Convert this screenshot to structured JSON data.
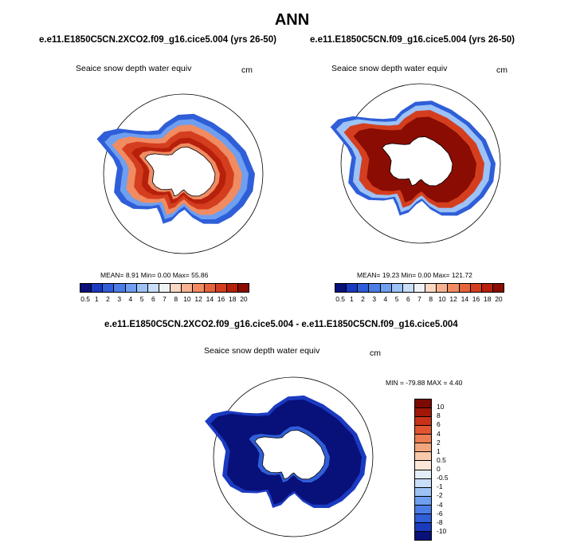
{
  "page": {
    "title": "ANN"
  },
  "panels": [
    {
      "case": "e.e11.E1850C5CN.2XCO2.f09_g16.cice5.004 (yrs 26-50)",
      "variable": "Seaice snow depth water equiv",
      "units": "cm",
      "stats": "MEAN=   8.91  Min=   0.00  Max=  55.86"
    },
    {
      "case": "e.e11.E1850C5CN.f09_g16.cice5.004 (yrs 26-50)",
      "variable": "Seaice snow depth water equiv",
      "units": "cm",
      "stats": "MEAN=  19.23  Min=   0.00  Max= 121.72"
    },
    {
      "case": "e.e11.E1850C5CN.2XCO2.f09_g16.cice5.004 - e.e11.E1850C5CN.f09_g16.cice5.004",
      "variable": "Seaice snow depth water equiv",
      "units": "cm",
      "stats": "MIN = -79.88  MAX =   4.40"
    }
  ],
  "colors": {
    "abs_scale": [
      "#08107a",
      "#1a3ac0",
      "#2f5ed8",
      "#4a7de6",
      "#6e9ff0",
      "#9cc2f6",
      "#c8def9",
      "#f0f2f6",
      "#fbd8c2",
      "#f7b290",
      "#f08b62",
      "#e5643c",
      "#d43e1e",
      "#b7200b",
      "#8a0c02"
    ],
    "diff_scale": [
      "#08107a",
      "#1a3ac0",
      "#2f5ed8",
      "#4a7de6",
      "#6e9ff0",
      "#9cc2f6",
      "#c8def9",
      "#e4eefa",
      "#fbe6d8",
      "#f8c9ab",
      "#f3a57e",
      "#ec7c52",
      "#e05530",
      "#c8321a",
      "#a01708",
      "#7a0a02"
    ],
    "land": "#ffffff",
    "coast": "#000000"
  },
  "chart_data": [
    {
      "type": "heatmap",
      "projection": "south-polar-stereographic",
      "title": "e.e11.E1850C5CN.2XCO2.f09_g16.cice5.004 (yrs 26-50)",
      "variable": "Seaice snow depth water equiv",
      "units": "cm",
      "mean": 8.91,
      "min": 0.0,
      "max": 55.86,
      "colorbar_levels": [
        "0.5",
        "1",
        "2",
        "3",
        "4",
        "5",
        "6",
        "7",
        "8",
        "10",
        "12",
        "14",
        "16",
        "18",
        "20"
      ]
    },
    {
      "type": "heatmap",
      "projection": "south-polar-stereographic",
      "title": "e.e11.E1850C5CN.f09_g16.cice5.004 (yrs 26-50)",
      "variable": "Seaice snow depth water equiv",
      "units": "cm",
      "mean": 19.23,
      "min": 0.0,
      "max": 121.72,
      "colorbar_levels": [
        "0.5",
        "1",
        "2",
        "3",
        "4",
        "5",
        "6",
        "7",
        "8",
        "10",
        "12",
        "14",
        "16",
        "18",
        "20"
      ]
    },
    {
      "type": "heatmap",
      "projection": "south-polar-stereographic",
      "title": "e.e11.E1850C5CN.2XCO2.f09_g16.cice5.004 - e.e11.E1850C5CN.f09_g16.cice5.004",
      "variable": "Seaice snow depth water equiv",
      "units": "cm",
      "min": -79.88,
      "max": 4.4,
      "colorbar_levels": [
        "10",
        "8",
        "6",
        "4",
        "2",
        "1",
        "0.5",
        "0",
        "-0.5",
        "-1",
        "-2",
        "-4",
        "-6",
        "-8",
        "-10"
      ]
    }
  ]
}
